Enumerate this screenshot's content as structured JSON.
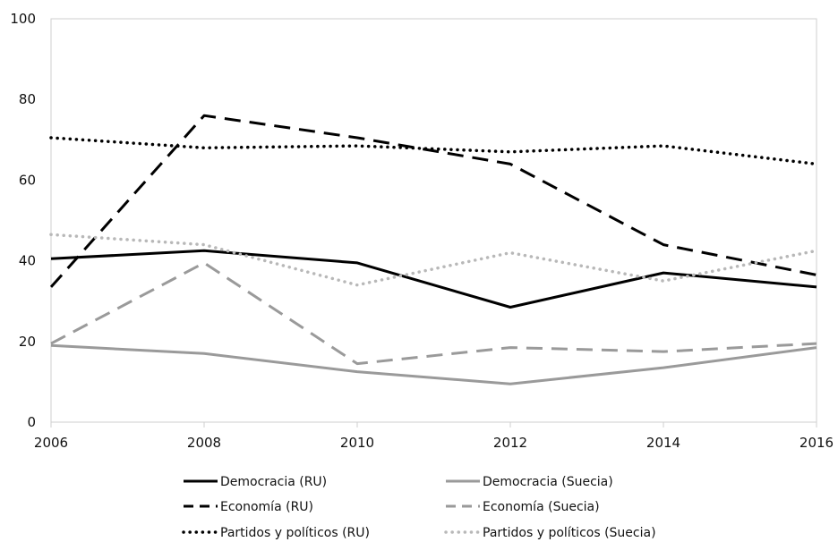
{
  "chart_data": {
    "type": "line",
    "title": "",
    "xlabel": "",
    "ylabel": "",
    "x": [
      2006,
      2008,
      2010,
      2012,
      2014,
      2016
    ],
    "xlim": [
      2006,
      2016
    ],
    "ylim": [
      0,
      100
    ],
    "xticks": [
      "2006",
      "2008",
      "2010",
      "2012",
      "2014",
      "2016"
    ],
    "yticks": [
      "0",
      "20",
      "40",
      "60",
      "80",
      "100"
    ],
    "grid": false,
    "legend_position": "bottom",
    "series": [
      {
        "name": "Democracia (RU)",
        "color": "#000000",
        "dash": "solid",
        "values": [
          40.5,
          42.5,
          39.5,
          28.5,
          37,
          33.5
        ]
      },
      {
        "name": "Democracia (Suecia)",
        "color": "#9a9a9a",
        "dash": "solid",
        "values": [
          19,
          17,
          12.5,
          9.5,
          13.5,
          18.5
        ]
      },
      {
        "name": "Economía (RU)",
        "color": "#000000",
        "dash": "dash",
        "values": [
          33.5,
          76,
          70.5,
          64,
          44,
          36.5
        ]
      },
      {
        "name": "Economía (Suecia)",
        "color": "#9a9a9a",
        "dash": "dash",
        "values": [
          19.5,
          39.5,
          14.5,
          18.5,
          17.5,
          19.5
        ]
      },
      {
        "name": "Partidos y políticos (RU)",
        "color": "#000000",
        "dash": "dot",
        "values": [
          70.5,
          68,
          68.5,
          67,
          68.5,
          64
        ]
      },
      {
        "name": "Partidos y políticos (Suecia)",
        "color": "#b8b8b8",
        "dash": "dot",
        "values": [
          46.5,
          44,
          34,
          42,
          35,
          42.5
        ]
      }
    ]
  }
}
